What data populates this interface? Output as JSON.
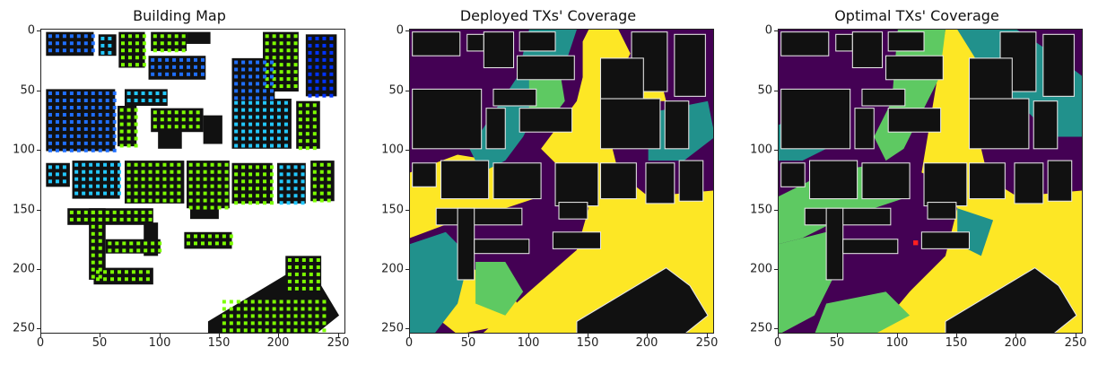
{
  "panels": [
    {
      "title": "Building Map"
    },
    {
      "title": "Deployed TXs' Coverage"
    },
    {
      "title": "Optimal TXs' Coverage"
    }
  ],
  "axes": {
    "x_ticks": [
      "0",
      "50",
      "100",
      "150",
      "200",
      "250"
    ],
    "y_ticks": [
      "0",
      "50",
      "100",
      "150",
      "200",
      "250"
    ]
  },
  "colors": {
    "building": "#111111",
    "building_outline": "#e6e6e6",
    "coverage_high": "#fde725",
    "coverage_mid_high": "#5ec962",
    "coverage_mid": "#21918c",
    "coverage_low": "#440154",
    "tx_blue": "#1f6fff",
    "tx_cyan": "#22c8ff",
    "tx_green": "#7cff00",
    "tx_dark_blue": "#0033ff",
    "optimal_tx_marker": "#ff2020"
  }
}
